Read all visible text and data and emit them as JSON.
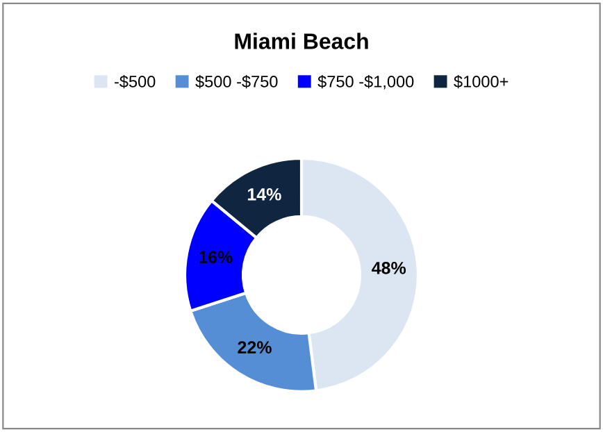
{
  "chart_data": {
    "type": "donut",
    "title": "Miami Beach",
    "categories": [
      "-$500",
      "$500 -$750",
      "$750 -$1,000",
      "$1000+"
    ],
    "values": [
      48,
      22,
      16,
      14
    ],
    "colors": [
      "#dce6f2",
      "#558ed5",
      "#0000ff",
      "#10253f"
    ],
    "value_labels": [
      "48%",
      "22%",
      "16%",
      "14%"
    ],
    "legend": "top"
  }
}
